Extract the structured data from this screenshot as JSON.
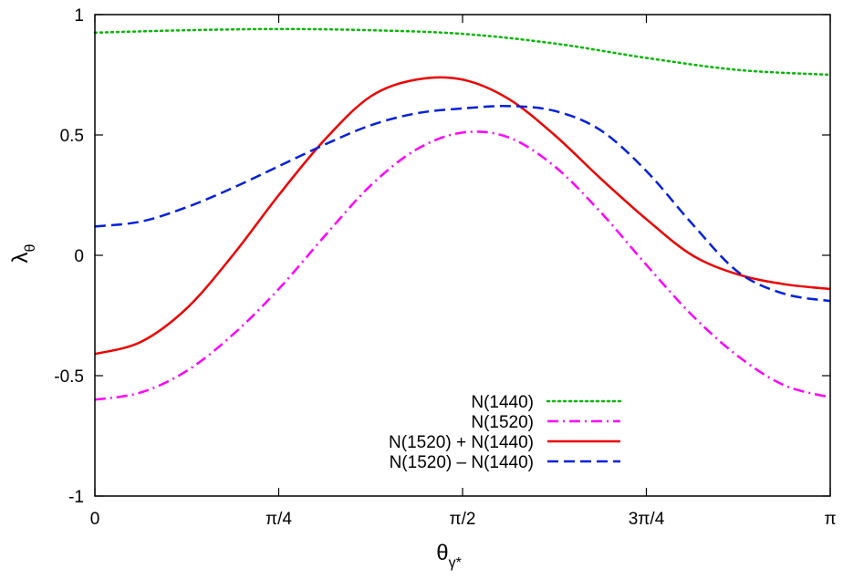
{
  "chart_data": {
    "type": "line",
    "title": "",
    "xlabel": "θ",
    "xlabel_subscript": "γ*",
    "ylabel": "λ",
    "ylabel_subscript": "θ",
    "xlim": [
      0,
      3.141592653589793
    ],
    "ylim": [
      -1,
      1
    ],
    "x_ticks": [
      {
        "value": 0,
        "label": "0"
      },
      {
        "value": 0.7853981633974483,
        "label": "π/4"
      },
      {
        "value": 1.5707963267948966,
        "label": "π/2"
      },
      {
        "value": 2.356194490192345,
        "label": "3π/4"
      },
      {
        "value": 3.141592653589793,
        "label": "π"
      }
    ],
    "y_ticks": [
      {
        "value": 1,
        "label": "1"
      },
      {
        "value": 0.5,
        "label": "0.5"
      },
      {
        "value": 0,
        "label": "0"
      },
      {
        "value": -0.5,
        "label": "-0.5"
      },
      {
        "value": -1,
        "label": "-1"
      }
    ],
    "grid": false,
    "legend_position": "bottom-right",
    "series": [
      {
        "name": "N(1440)",
        "color": "#00b800",
        "style": "dotted",
        "x": [
          0,
          0.3927,
          0.7854,
          1.1781,
          1.5708,
          1.9635,
          2.3562,
          2.7489,
          3.1416
        ],
        "y": [
          0.925,
          0.935,
          0.94,
          0.935,
          0.92,
          0.88,
          0.82,
          0.77,
          0.75
        ]
      },
      {
        "name": "N(1520)",
        "color": "#ff00ff",
        "style": "dash-dot",
        "x": [
          0,
          0.1963,
          0.3927,
          0.589,
          0.7854,
          0.9817,
          1.1781,
          1.3744,
          1.5708,
          1.7671,
          1.9635,
          2.1598,
          2.3562,
          2.5525,
          2.7489,
          2.9452,
          3.1416
        ],
        "y": [
          -0.6,
          -0.57,
          -0.48,
          -0.33,
          -0.14,
          0.08,
          0.29,
          0.44,
          0.51,
          0.49,
          0.37,
          0.18,
          -0.04,
          -0.25,
          -0.42,
          -0.54,
          -0.59
        ]
      },
      {
        "name": "N(1520) + N(1440)",
        "color": "#ee0000",
        "style": "solid",
        "x": [
          0,
          0.1963,
          0.3927,
          0.589,
          0.7854,
          0.9817,
          1.1781,
          1.3744,
          1.5708,
          1.7671,
          1.9635,
          2.1598,
          2.3562,
          2.5525,
          2.7489,
          2.9452,
          3.1416
        ],
        "y": [
          -0.41,
          -0.36,
          -0.22,
          0.0,
          0.25,
          0.48,
          0.66,
          0.73,
          0.73,
          0.65,
          0.5,
          0.32,
          0.15,
          0.0,
          -0.08,
          -0.12,
          -0.14
        ]
      },
      {
        "name": "N(1520) – N(1440)",
        "color": "#0020dd",
        "style": "dashed",
        "x": [
          0,
          0.1963,
          0.3927,
          0.589,
          0.7854,
          0.9817,
          1.1781,
          1.3744,
          1.5708,
          1.7671,
          1.9635,
          2.1598,
          2.3562,
          2.5525,
          2.7489,
          2.9452,
          3.1416
        ],
        "y": [
          0.12,
          0.14,
          0.2,
          0.28,
          0.37,
          0.46,
          0.54,
          0.59,
          0.61,
          0.62,
          0.6,
          0.52,
          0.35,
          0.13,
          -0.07,
          -0.16,
          -0.19
        ]
      }
    ]
  }
}
